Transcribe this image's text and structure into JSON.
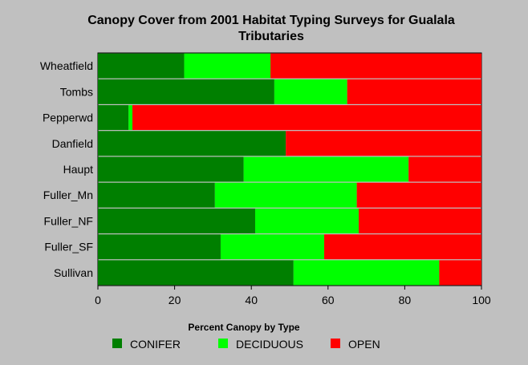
{
  "chart_data": {
    "type": "bar",
    "orientation": "horizontal",
    "stacked": true,
    "title": [
      "Canopy Cover from 2001 Habitat Typing Surveys for Gualala",
      "Tributaries"
    ],
    "categories": [
      "Wheatfield",
      "Tombs",
      "Pepperwd",
      "Danfield",
      "Haupt",
      "Fuller_Mn",
      "Fuller_NF",
      "Fuller_SF",
      "Sullivan"
    ],
    "series": [
      {
        "name": "CONIFER",
        "color": "#007f00",
        "values": [
          22.5,
          46,
          8,
          49,
          38,
          30.5,
          41,
          32,
          51
        ]
      },
      {
        "name": "DECIDUOUS",
        "color": "#00ff00",
        "values": [
          22.5,
          19,
          1,
          0,
          43,
          37,
          27,
          27,
          38
        ]
      },
      {
        "name": "OPEN",
        "color": "#ff0000",
        "values": [
          55,
          35,
          91,
          51,
          19,
          32.5,
          32,
          41,
          11
        ]
      }
    ],
    "xlim": [
      0,
      100
    ],
    "xticks": [
      0,
      20,
      40,
      60,
      80,
      100
    ],
    "legend_title": "Percent Canopy by Type",
    "legend_position": "bottom",
    "grid": false
  }
}
